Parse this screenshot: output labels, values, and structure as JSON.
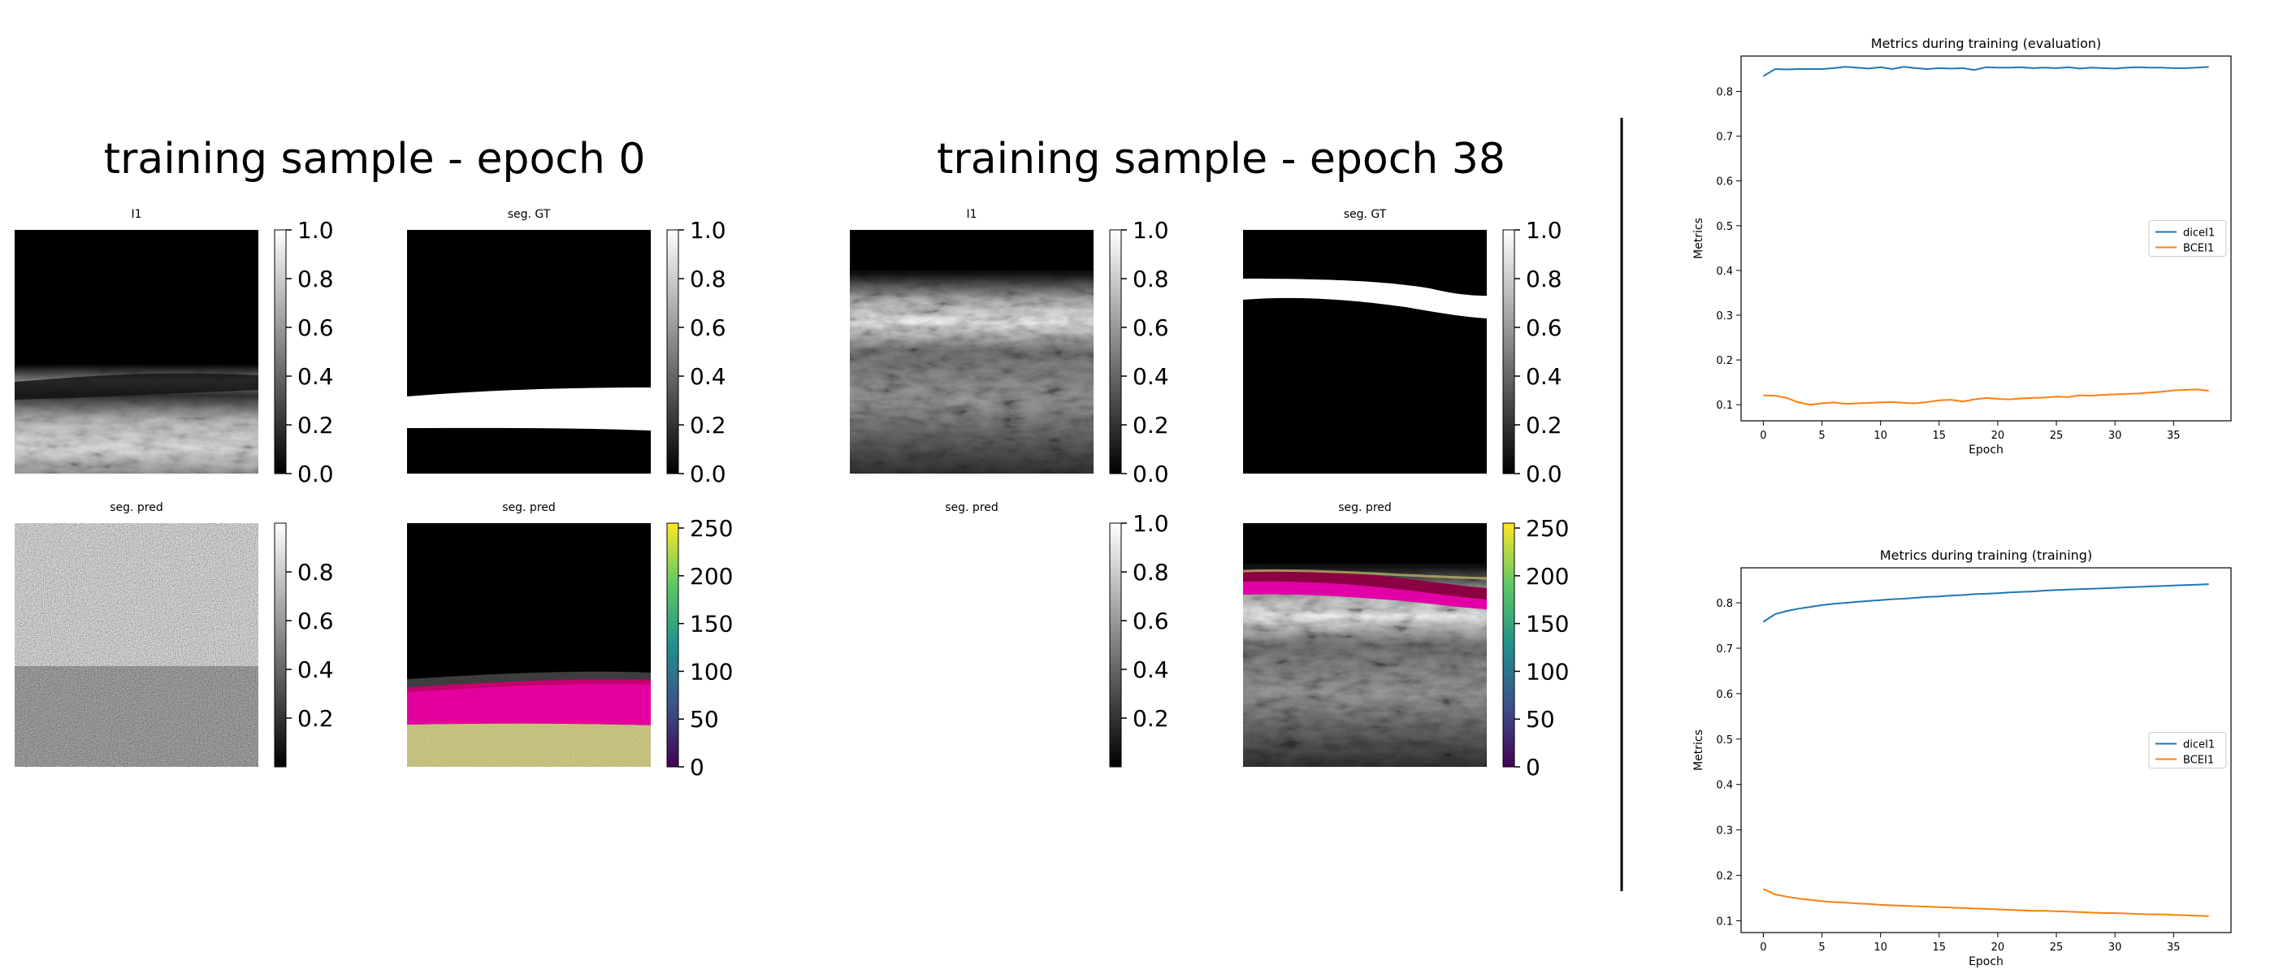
{
  "left_figures": {
    "epoch0": {
      "title": "training sample - epoch 0",
      "panels": [
        {
          "title": "I1",
          "colorbar_ticks": [
            "1.0",
            "0.8",
            "0.6",
            "0.4",
            "0.2",
            "0.0"
          ],
          "colormap": "gray"
        },
        {
          "title": "seg. GT",
          "colorbar_ticks": [
            "1.0",
            "0.8",
            "0.6",
            "0.4",
            "0.2",
            "0.0"
          ],
          "colormap": "gray"
        },
        {
          "title": "seg. pred",
          "colorbar_ticks": [
            "0.8",
            "0.6",
            "0.4",
            "0.2"
          ],
          "colormap": "gray"
        },
        {
          "title": "seg. pred",
          "colorbar_ticks": [
            "250",
            "200",
            "150",
            "100",
            "50",
            "0"
          ],
          "colormap": "viridis"
        }
      ]
    },
    "epoch38": {
      "title": "training sample - epoch 38",
      "panels": [
        {
          "title": "I1",
          "colorbar_ticks": [
            "1.0",
            "0.8",
            "0.6",
            "0.4",
            "0.2",
            "0.0"
          ],
          "colormap": "gray"
        },
        {
          "title": "seg. GT",
          "colorbar_ticks": [
            "1.0",
            "0.8",
            "0.6",
            "0.4",
            "0.2",
            "0.0"
          ],
          "colormap": "gray"
        },
        {
          "title": "seg. pred",
          "colorbar_ticks": [
            "1.0",
            "0.8",
            "0.6",
            "0.4",
            "0.2"
          ],
          "colormap": "gray"
        },
        {
          "title": "seg. pred",
          "colorbar_ticks": [
            "250",
            "200",
            "150",
            "100",
            "50",
            "0"
          ],
          "colormap": "viridis"
        }
      ]
    }
  },
  "colors": {
    "dice": "#1f77b4",
    "bce": "#ff7f0e",
    "magenta": "#ff00c8",
    "viridis_top": "#fde725",
    "viridis_bottom": "#440154"
  },
  "chart_data": [
    {
      "type": "line",
      "title": "Metrics during training (evaluation)",
      "xlabel": "Epoch",
      "ylabel": "Metrics",
      "xlim": [
        -1.9,
        39.9
      ],
      "ylim": [
        0.064,
        0.879
      ],
      "xticks": [
        0,
        5,
        10,
        15,
        20,
        25,
        30,
        35
      ],
      "yticks": [
        0.1,
        0.2,
        0.3,
        0.4,
        0.5,
        0.6,
        0.7,
        0.8
      ],
      "legend": "center-right",
      "x": [
        0,
        1,
        2,
        3,
        4,
        5,
        6,
        7,
        8,
        9,
        10,
        11,
        12,
        13,
        14,
        15,
        16,
        17,
        18,
        19,
        20,
        21,
        22,
        23,
        24,
        25,
        26,
        27,
        28,
        29,
        30,
        31,
        32,
        33,
        34,
        35,
        36,
        37,
        38
      ],
      "series": [
        {
          "name": "diceI1",
          "color": "#1f77b4",
          "values": [
            0.834,
            0.85,
            0.849,
            0.85,
            0.85,
            0.85,
            0.852,
            0.855,
            0.853,
            0.851,
            0.854,
            0.85,
            0.855,
            0.852,
            0.85,
            0.852,
            0.851,
            0.852,
            0.848,
            0.854,
            0.853,
            0.853,
            0.854,
            0.852,
            0.853,
            0.852,
            0.854,
            0.851,
            0.853,
            0.852,
            0.851,
            0.853,
            0.854,
            0.853,
            0.853,
            0.852,
            0.852,
            0.853,
            0.855
          ]
        },
        {
          "name": "BCEI1",
          "color": "#ff7f0e",
          "values": [
            0.121,
            0.12,
            0.115,
            0.105,
            0.1,
            0.103,
            0.105,
            0.102,
            0.103,
            0.104,
            0.105,
            0.106,
            0.104,
            0.103,
            0.106,
            0.11,
            0.111,
            0.107,
            0.112,
            0.115,
            0.113,
            0.112,
            0.114,
            0.115,
            0.116,
            0.118,
            0.117,
            0.121,
            0.12,
            0.122,
            0.123,
            0.124,
            0.125,
            0.127,
            0.129,
            0.132,
            0.133,
            0.134,
            0.131
          ]
        }
      ]
    },
    {
      "type": "line",
      "title": "Metrics during training (training)",
      "xlabel": "Epoch",
      "ylabel": "Metrics",
      "xlim": [
        -1.9,
        39.9
      ],
      "ylim": [
        0.074,
        0.877
      ],
      "xticks": [
        0,
        5,
        10,
        15,
        20,
        25,
        30,
        35
      ],
      "yticks": [
        0.1,
        0.2,
        0.3,
        0.4,
        0.5,
        0.6,
        0.7,
        0.8
      ],
      "legend": "center-right",
      "x": [
        0,
        1,
        2,
        3,
        4,
        5,
        6,
        7,
        8,
        9,
        10,
        11,
        12,
        13,
        14,
        15,
        16,
        17,
        18,
        19,
        20,
        21,
        22,
        23,
        24,
        25,
        26,
        27,
        28,
        29,
        30,
        31,
        32,
        33,
        34,
        35,
        36,
        37,
        38
      ],
      "series": [
        {
          "name": "diceI1",
          "color": "#1f77b4",
          "values": [
            0.758,
            0.775,
            0.782,
            0.787,
            0.791,
            0.795,
            0.798,
            0.8,
            0.802,
            0.804,
            0.806,
            0.808,
            0.809,
            0.811,
            0.813,
            0.814,
            0.816,
            0.817,
            0.819,
            0.82,
            0.821,
            0.823,
            0.824,
            0.825,
            0.827,
            0.828,
            0.829,
            0.83,
            0.831,
            0.832,
            0.833,
            0.834,
            0.835,
            0.836,
            0.837,
            0.838,
            0.839,
            0.84,
            0.841
          ]
        },
        {
          "name": "BCEI1",
          "color": "#ff7f0e",
          "values": [
            0.17,
            0.158,
            0.153,
            0.149,
            0.146,
            0.143,
            0.141,
            0.14,
            0.138,
            0.137,
            0.135,
            0.134,
            0.133,
            0.132,
            0.131,
            0.13,
            0.129,
            0.128,
            0.127,
            0.126,
            0.125,
            0.124,
            0.123,
            0.122,
            0.122,
            0.121,
            0.12,
            0.119,
            0.118,
            0.117,
            0.117,
            0.116,
            0.115,
            0.114,
            0.114,
            0.113,
            0.112,
            0.111,
            0.11
          ]
        }
      ]
    }
  ]
}
